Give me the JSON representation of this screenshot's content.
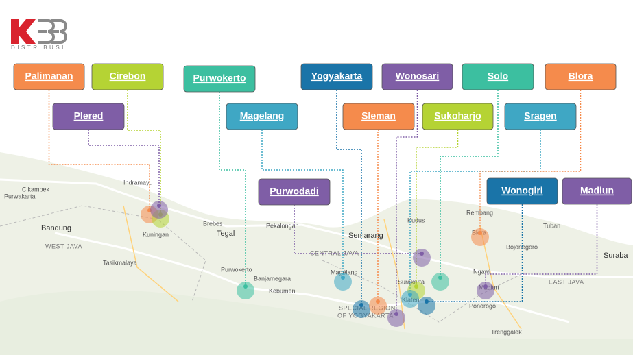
{
  "logo": {
    "text": "DISTRIBUSI"
  },
  "boxes": [
    {
      "label": "Palimanan",
      "color": "#f58b4c"
    },
    {
      "label": "Cirebon",
      "color": "#b5d334"
    },
    {
      "label": "Plered",
      "color": "#7f5ea6"
    },
    {
      "label": "Purwokerto",
      "color": "#3cbfa0"
    },
    {
      "label": "Magelang",
      "color": "#3fa7c4"
    },
    {
      "label": "Purwodadi",
      "color": "#7f5ea6"
    },
    {
      "label": "Yogyakarta",
      "color": "#1a74a8"
    },
    {
      "label": "Wonosari",
      "color": "#7f5ea6"
    },
    {
      "label": "Sleman",
      "color": "#f58b4c"
    },
    {
      "label": "Sukoharjo",
      "color": "#b5d334"
    },
    {
      "label": "Solo",
      "color": "#3cbfa0"
    },
    {
      "label": "Sragen",
      "color": "#3fa7c4"
    },
    {
      "label": "Blora",
      "color": "#f58b4c"
    },
    {
      "label": "Wonogiri",
      "color": "#1a74a8"
    },
    {
      "label": "Madiun",
      "color": "#7f5ea6"
    }
  ],
  "map_labels": [
    "Cikampek",
    "Purwakarta",
    "Bandung",
    "WEST JAVA",
    "Tasikmalaya",
    "Indramayu",
    "Kuningan",
    "Brebes",
    "Tegal",
    "Pekalongan",
    "Semarang",
    "CENTRAL JAVA",
    "Purwokerto",
    "Banjarnegara",
    "Kebumen",
    "Magelang",
    "SPECIAL REGION",
    "OF YOGYAKARTA",
    "Surakarta",
    "Klaten",
    "Kudus",
    "Rembang",
    "Blora",
    "Bojonegoro",
    "Tuban",
    "Ngawi",
    "Madiun",
    "EAST JAVA",
    "Ponorogo",
    "Trenggalek",
    "Suraba"
  ]
}
